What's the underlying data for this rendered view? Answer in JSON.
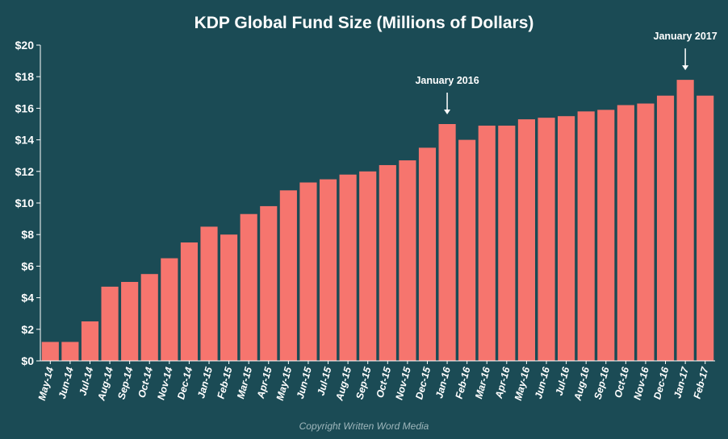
{
  "chart_data": {
    "type": "bar",
    "title": "KDP Global Fund Size (Millions of Dollars)",
    "xlabel": "",
    "ylabel": "",
    "categories": [
      "May-14",
      "Jun-14",
      "Jul-14",
      "Aug-14",
      "Sep-14",
      "Oct-14",
      "Nov-14",
      "Dec-14",
      "Jan-15",
      "Feb-15",
      "Mar-15",
      "Apr-15",
      "May-15",
      "Jun-15",
      "Jul-15",
      "Aug-15",
      "Sep-15",
      "Oct-15",
      "Nov-15",
      "Dec-15",
      "Jan-16",
      "Feb-16",
      "Mar-16",
      "Apr-16",
      "May-16",
      "Jun-16",
      "Jul-16",
      "Aug-16",
      "Sep-16",
      "Oct-16",
      "Nov-16",
      "Dec-16",
      "Jan-17",
      "Feb-17"
    ],
    "values": [
      1.2,
      1.2,
      2.5,
      4.7,
      5.0,
      5.5,
      6.5,
      7.5,
      8.5,
      8.0,
      9.3,
      9.8,
      10.8,
      11.3,
      11.5,
      11.8,
      12.0,
      12.4,
      12.7,
      13.5,
      15.0,
      14.0,
      14.9,
      14.9,
      15.3,
      15.4,
      15.5,
      15.8,
      15.9,
      16.2,
      16.3,
      16.8,
      17.8,
      16.8
    ],
    "ylim": [
      0,
      20
    ],
    "yticks": [
      0,
      2,
      4,
      6,
      8,
      10,
      12,
      14,
      16,
      18,
      20
    ],
    "ytick_labels": [
      "$0",
      "$2",
      "$4",
      "$6",
      "$8",
      "$10",
      "$12",
      "$14",
      "$16",
      "$18",
      "$20"
    ],
    "grid": false,
    "legend": "none",
    "annotations": [
      {
        "text": "January 2016",
        "category": "Jan-16"
      },
      {
        "text": "January 2017",
        "category": "Jan-17"
      }
    ],
    "footer": "Copyright Written Word Media",
    "colors": {
      "background": "#1b4b55",
      "bar": "#f6756e",
      "text": "#ffffff",
      "axis": "#ffffff",
      "footer": "#9fb7bc"
    }
  }
}
